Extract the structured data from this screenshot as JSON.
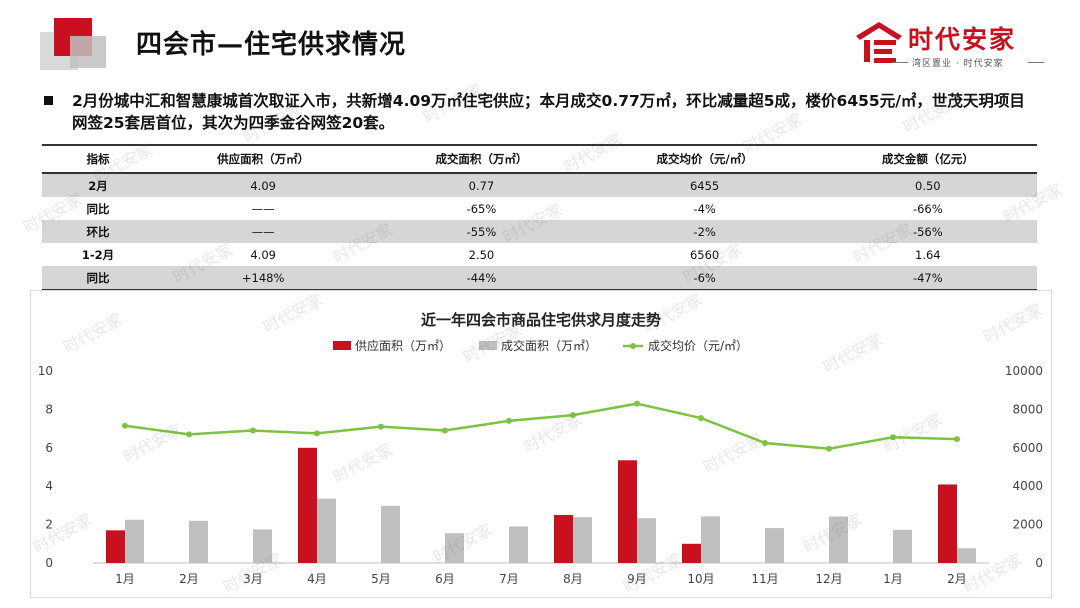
{
  "header": {
    "title": "四会市—住宅供求情况",
    "logo_text": "时代安家",
    "logo_sub": "湾区置业 · 时代安家"
  },
  "summary": {
    "text": "2月份城中汇和智慧康城首次取证入市，共新增4.09万㎡住宅供应；本月成交0.77万㎡，环比减量超5成，楼价6455元/㎡，世茂天玥项目网签25套居首位，其次为四季金谷网签20套。"
  },
  "table": {
    "headers": [
      "指标",
      "供应面积（万㎡）",
      "成交面积（万㎡）",
      "成交均价（元/㎡）",
      "成交金额（亿元）"
    ],
    "rows": [
      [
        "2月",
        "4.09",
        "0.77",
        "6455",
        "0.50"
      ],
      [
        "同比",
        "——",
        "-65%",
        "-4%",
        "-66%"
      ],
      [
        "环比",
        "——",
        "-55%",
        "-2%",
        "-56%"
      ],
      [
        "1-2月",
        "4.09",
        "2.50",
        "6560",
        "1.64"
      ],
      [
        "同比",
        "+148%",
        "-44%",
        "-6%",
        "-47%"
      ]
    ]
  },
  "watermark": "时代安家",
  "colors": {
    "supply": "#c8101e",
    "deal": "#bfbfbf",
    "price": "#7dc242",
    "brand": "#c8101e"
  },
  "chart_data": {
    "type": "bar",
    "title": "近一年四会市商品住宅供求月度走势",
    "categories": [
      "1月",
      "2月",
      "3月",
      "4月",
      "5月",
      "6月",
      "7月",
      "8月",
      "9月",
      "10月",
      "11月",
      "12月",
      "1月",
      "2月"
    ],
    "series": [
      {
        "name": "供应面积（万㎡）",
        "type": "bar",
        "axis": "left",
        "values": [
          1.7,
          0,
          0,
          6.0,
          0,
          0,
          0,
          2.5,
          5.35,
          1.0,
          0,
          0,
          0,
          4.09
        ]
      },
      {
        "name": "成交面积（万㎡）",
        "type": "bar",
        "axis": "left",
        "values": [
          2.25,
          2.2,
          1.75,
          3.35,
          2.98,
          1.55,
          1.9,
          2.38,
          2.33,
          2.43,
          1.82,
          2.42,
          1.73,
          0.77
        ]
      },
      {
        "name": "成交均价（元/㎡）",
        "type": "line",
        "axis": "right",
        "values": [
          7150,
          6700,
          6900,
          6750,
          7100,
          6900,
          7400,
          7700,
          8300,
          7550,
          6250,
          5950,
          6550,
          6455
        ]
      }
    ],
    "y_left": {
      "min": 0,
      "max": 10,
      "ticks": [
        "0",
        "2",
        "4",
        "6",
        "8",
        "10"
      ]
    },
    "y_right": {
      "min": 0,
      "max": 10000,
      "ticks": [
        "0",
        "2000",
        "4000",
        "6000",
        "8000",
        "10000"
      ]
    },
    "legend_position": "top",
    "grid": false
  }
}
